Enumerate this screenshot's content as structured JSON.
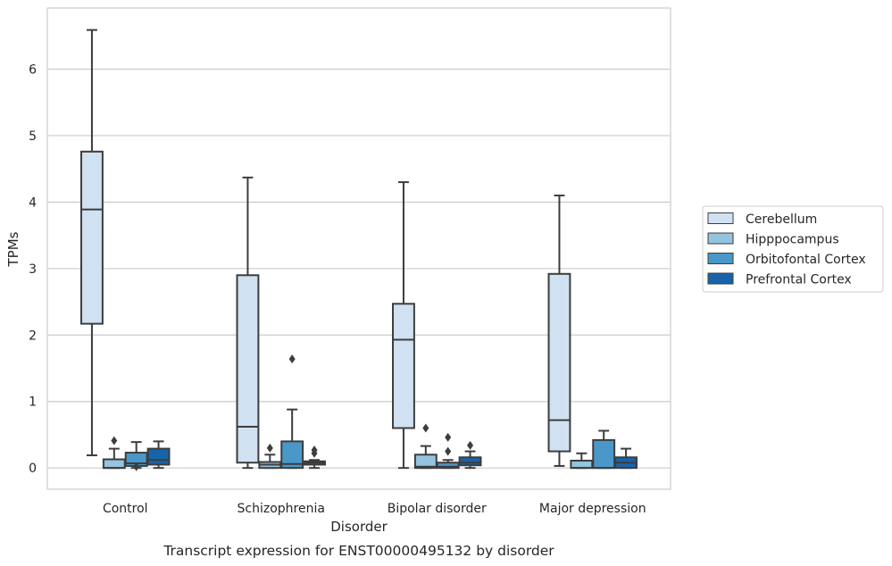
{
  "caption": "Transcript expression for ENST00000495132 by disorder",
  "chart_data": {
    "type": "box",
    "title": "",
    "xlabel": "Disorder",
    "ylabel": "TPMs",
    "ylim": [
      -0.32,
      6.92
    ],
    "yticks": [
      0,
      1,
      2,
      3,
      4,
      5,
      6
    ],
    "grid": "horizontal",
    "legend_position": "right",
    "categories": [
      "Control",
      "Schizophrenia",
      "Bipolar disorder",
      "Major depression"
    ],
    "series": [
      {
        "name": "Cerebellum",
        "color": "#d0e1f2",
        "boxes": [
          {
            "min": 0.19,
            "q1": 2.17,
            "median": 3.89,
            "q3": 4.76,
            "max": 6.59,
            "outliers": []
          },
          {
            "min": 0.0,
            "q1": 0.08,
            "median": 0.62,
            "q3": 2.9,
            "max": 4.37,
            "outliers": []
          },
          {
            "min": 0.0,
            "q1": 0.6,
            "median": 1.93,
            "q3": 2.47,
            "max": 4.3,
            "outliers": []
          },
          {
            "min": 0.03,
            "q1": 0.25,
            "median": 0.72,
            "q3": 2.92,
            "max": 4.1,
            "outliers": []
          }
        ]
      },
      {
        "name": "Hipppocampus",
        "color": "#94c4df",
        "boxes": [
          {
            "min": 0.0,
            "q1": 0.0,
            "median": 0.0,
            "q3": 0.13,
            "max": 0.29,
            "outliers": [
              0.41
            ]
          },
          {
            "min": 0.0,
            "q1": 0.0,
            "median": 0.05,
            "q3": 0.09,
            "max": 0.2,
            "outliers": [
              0.3
            ]
          },
          {
            "min": 0.0,
            "q1": 0.0,
            "median": 0.02,
            "q3": 0.2,
            "max": 0.33,
            "outliers": [
              0.6
            ]
          },
          {
            "min": 0.0,
            "q1": 0.0,
            "median": 0.0,
            "q3": 0.11,
            "max": 0.22,
            "outliers": []
          }
        ]
      },
      {
        "name": "Orbitofontal Cortex",
        "color": "#4a98c9",
        "boxes": [
          {
            "min": 0.0,
            "q1": 0.03,
            "median": 0.07,
            "q3": 0.23,
            "max": 0.39,
            "outliers": [
              0.02
            ]
          },
          {
            "min": 0.0,
            "q1": 0.0,
            "median": 0.06,
            "q3": 0.4,
            "max": 0.88,
            "outliers": [
              1.64
            ]
          },
          {
            "min": 0.0,
            "q1": 0.0,
            "median": 0.02,
            "q3": 0.08,
            "max": 0.12,
            "outliers": [
              0.25,
              0.46
            ]
          },
          {
            "min": 0.0,
            "q1": 0.0,
            "median": 0.0,
            "q3": 0.42,
            "max": 0.56,
            "outliers": []
          }
        ]
      },
      {
        "name": "Prefrontal Cortex",
        "color": "#1764ab",
        "boxes": [
          {
            "min": 0.0,
            "q1": 0.05,
            "median": 0.12,
            "q3": 0.29,
            "max": 0.4,
            "outliers": []
          },
          {
            "min": 0.0,
            "q1": 0.05,
            "median": 0.08,
            "q3": 0.1,
            "max": 0.12,
            "outliers": [
              0.22,
              0.27
            ]
          },
          {
            "min": 0.0,
            "q1": 0.04,
            "median": 0.08,
            "q3": 0.16,
            "max": 0.25,
            "outliers": [
              0.34
            ]
          },
          {
            "min": 0.0,
            "q1": 0.0,
            "median": 0.08,
            "q3": 0.16,
            "max": 0.29,
            "outliers": []
          }
        ]
      }
    ]
  }
}
